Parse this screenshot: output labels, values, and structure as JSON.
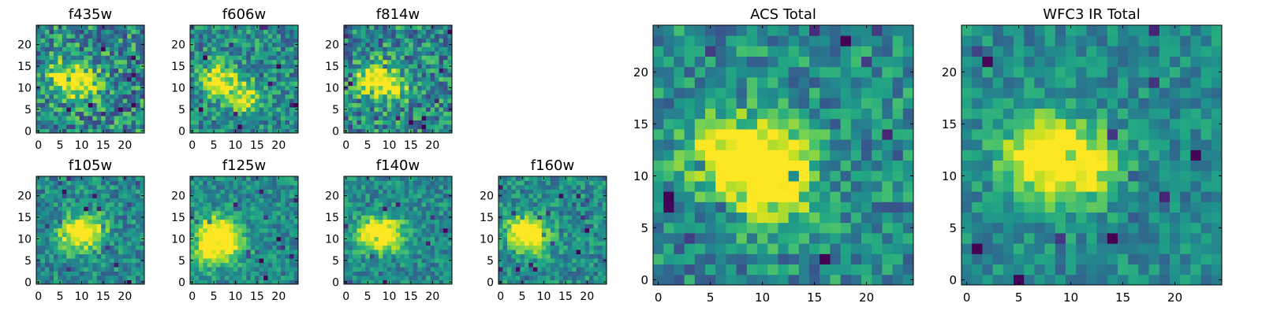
{
  "chart_data": [
    {
      "type": "heatmap",
      "title": "f435w",
      "grid_size": 25,
      "xlim": [
        0,
        24
      ],
      "ylim": [
        0,
        24
      ],
      "xticks": [
        0,
        5,
        10,
        15,
        20
      ],
      "yticks": [
        0,
        5,
        10,
        15,
        20
      ],
      "colormap": "viridis",
      "grid": false,
      "hotspots": [
        {
          "x": 6,
          "y": 12,
          "level": 1.0
        },
        {
          "x": 11,
          "y": 11,
          "level": 0.7
        }
      ],
      "noise": 0.38
    },
    {
      "type": "heatmap",
      "title": "f606w",
      "grid_size": 25,
      "xlim": [
        0,
        24
      ],
      "ylim": [
        0,
        24
      ],
      "xticks": [
        0,
        5,
        10,
        15,
        20
      ],
      "yticks": [
        0,
        5,
        10,
        15,
        20
      ],
      "colormap": "viridis",
      "grid": false,
      "hotspots": [
        {
          "x": 6,
          "y": 12,
          "level": 1.0
        },
        {
          "x": 12,
          "y": 8,
          "level": 0.85
        }
      ],
      "noise": 0.3
    },
    {
      "type": "heatmap",
      "title": "f814w",
      "grid_size": 25,
      "xlim": [
        0,
        24
      ],
      "ylim": [
        0,
        24
      ],
      "xticks": [
        0,
        5,
        10,
        15,
        20
      ],
      "yticks": [
        0,
        5,
        10,
        15,
        20
      ],
      "colormap": "viridis",
      "grid": false,
      "hotspots": [
        {
          "x": 6,
          "y": 12,
          "level": 1.0
        },
        {
          "x": 11,
          "y": 11,
          "level": 0.75
        }
      ],
      "noise": 0.36
    },
    {
      "type": "heatmap",
      "title": "f105w",
      "grid_size": 25,
      "xlim": [
        0,
        24
      ],
      "ylim": [
        0,
        24
      ],
      "xticks": [
        0,
        5,
        10,
        15,
        20
      ],
      "yticks": [
        0,
        5,
        10,
        15,
        20
      ],
      "colormap": "viridis",
      "grid": false,
      "hotspots": [
        {
          "x": 8,
          "y": 11,
          "level": 0.85
        },
        {
          "x": 12,
          "y": 12,
          "level": 0.9
        }
      ],
      "noise": 0.25
    },
    {
      "type": "heatmap",
      "title": "f125w",
      "grid_size": 25,
      "xlim": [
        0,
        24
      ],
      "ylim": [
        0,
        24
      ],
      "xticks": [
        0,
        5,
        10,
        15,
        20
      ],
      "yticks": [
        0,
        5,
        10,
        15,
        20
      ],
      "colormap": "viridis",
      "grid": false,
      "hotspots": [
        {
          "x": 5,
          "y": 12,
          "level": 1.0
        },
        {
          "x": 9,
          "y": 9,
          "level": 0.85
        },
        {
          "x": 4,
          "y": 7,
          "level": 0.8
        }
      ],
      "noise": 0.22
    },
    {
      "type": "heatmap",
      "title": "f140w",
      "grid_size": 25,
      "xlim": [
        0,
        24
      ],
      "ylim": [
        0,
        24
      ],
      "xticks": [
        0,
        5,
        10,
        15,
        20
      ],
      "yticks": [
        0,
        5,
        10,
        15,
        20
      ],
      "colormap": "viridis",
      "grid": false,
      "hotspots": [
        {
          "x": 6,
          "y": 11,
          "level": 1.0
        },
        {
          "x": 10,
          "y": 11,
          "level": 0.95
        }
      ],
      "noise": 0.22
    },
    {
      "type": "heatmap",
      "title": "f160w",
      "grid_size": 25,
      "xlim": [
        0,
        24
      ],
      "ylim": [
        0,
        24
      ],
      "xticks": [
        0,
        5,
        10,
        15,
        20
      ],
      "yticks": [
        0,
        5,
        10,
        15,
        20
      ],
      "colormap": "viridis",
      "grid": false,
      "hotspots": [
        {
          "x": 5,
          "y": 12,
          "level": 1.0
        },
        {
          "x": 8,
          "y": 10,
          "level": 0.8
        }
      ],
      "noise": 0.24
    },
    {
      "type": "heatmap",
      "title": "ACS Total",
      "grid_size": 25,
      "xlim": [
        0,
        24
      ],
      "ylim": [
        0,
        24
      ],
      "xticks": [
        0,
        5,
        10,
        15,
        20
      ],
      "yticks": [
        0,
        5,
        10,
        15,
        20
      ],
      "colormap": "viridis",
      "grid": false,
      "hotspots": [
        {
          "x": 6,
          "y": 12,
          "level": 1.0
        },
        {
          "x": 11,
          "y": 9,
          "level": 0.9
        },
        {
          "x": 11,
          "y": 12,
          "level": 0.7
        }
      ],
      "noise": 0.28
    },
    {
      "type": "heatmap",
      "title": "WFC3 IR Total",
      "grid_size": 25,
      "xlim": [
        0,
        24
      ],
      "ylim": [
        0,
        24
      ],
      "xticks": [
        0,
        5,
        10,
        15,
        20
      ],
      "yticks": [
        0,
        5,
        10,
        15,
        20
      ],
      "colormap": "viridis",
      "grid": false,
      "hotspots": [
        {
          "x": 7,
          "y": 12,
          "level": 1.0
        },
        {
          "x": 11,
          "y": 11,
          "level": 0.85
        }
      ],
      "noise": 0.2
    }
  ]
}
